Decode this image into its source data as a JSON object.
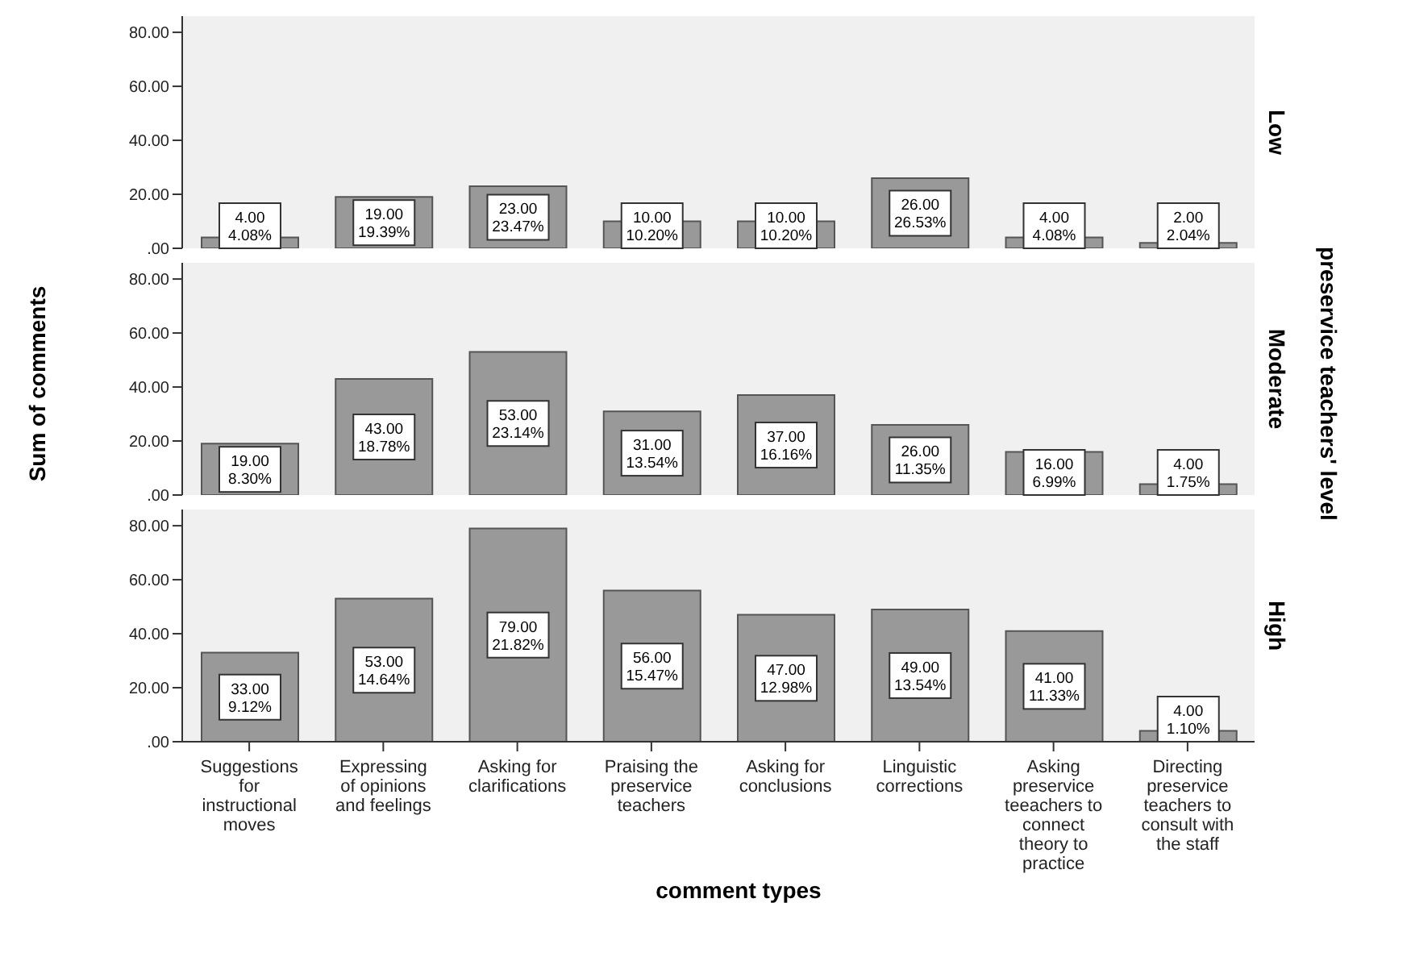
{
  "chart_data": [
    {
      "type": "bar",
      "title": "Low",
      "tick_labels": "y",
      "categories": [
        null,
        null,
        null,
        null,
        null,
        null,
        null,
        null
      ],
      "values": [
        4,
        19,
        23,
        10,
        10,
        26,
        4,
        2
      ],
      "color": "#999999",
      "value_labels": [
        "4.00\n4.08%",
        "19.00\n19.39%",
        "23.00\n23.47%",
        "10.00\n10.20%",
        "10.00\n10.20%",
        "26.00\n26.53%",
        "4.00\n4.08%",
        "2.00\n2.04%"
      ],
      "ylim": [
        0,
        86
      ],
      "yticks": [
        {
          "value": 0,
          "label": ".00"
        },
        {
          "value": 20,
          "label": "20.00"
        },
        {
          "value": 40,
          "label": "40.00"
        },
        {
          "value": 60,
          "label": "60.00"
        },
        {
          "value": 80,
          "label": "80.00"
        }
      ]
    },
    {
      "type": "bar",
      "title": "Moderate",
      "ylabel": "Sum of comments",
      "y2label": "preservice teachers' level",
      "tick_labels": "y",
      "categories": [
        null,
        null,
        null,
        null,
        null,
        null,
        null,
        null
      ],
      "values": [
        19,
        43,
        53,
        31,
        37,
        26,
        16,
        4
      ],
      "color": "#999999",
      "value_labels": [
        "19.00\n8.30%",
        "43.00\n18.78%",
        "53.00\n23.14%",
        "31.00\n13.54%",
        "37.00\n16.16%",
        "26.00\n11.35%",
        "16.00\n6.99%",
        "4.00\n1.75%"
      ],
      "ylim": [
        0,
        86
      ],
      "yticks": [
        {
          "value": 0,
          "label": ".00"
        },
        {
          "value": 20,
          "label": "20.00"
        },
        {
          "value": 40,
          "label": "40.00"
        },
        {
          "value": 60,
          "label": "60.00"
        },
        {
          "value": 80,
          "label": "80.00"
        }
      ]
    },
    {
      "type": "bar",
      "title": "High",
      "xlabel": "comment types",
      "categories": [
        "Suggestions for instructional moves",
        "Expressing of opinions and feelings",
        "Asking for clarifications",
        "Praising the preservice teachers",
        "Asking for conclusions",
        "Linguistic corrections",
        "Asking preservice teeachers to connect theory to practice",
        "Directing preservice teachers to consult with the staff"
      ],
      "values": [
        33,
        53,
        79,
        56,
        47,
        49,
        41,
        4
      ],
      "color": "#999999",
      "value_labels": [
        "33.00\n9.12%",
        "53.00\n14.64%",
        "79.00\n21.82%",
        "56.00\n15.47%",
        "47.00\n12.98%",
        "49.00\n13.54%",
        "41.00\n11.33%",
        "4.00\n1.10%"
      ],
      "ylim": [
        0,
        86
      ],
      "yticks": [
        {
          "value": 0,
          "label": ".00"
        },
        {
          "value": 20,
          "label": "20.00"
        },
        {
          "value": 40,
          "label": "40.00"
        },
        {
          "value": 60,
          "label": "60.00"
        },
        {
          "value": 80,
          "label": "80.00"
        }
      ]
    }
  ]
}
